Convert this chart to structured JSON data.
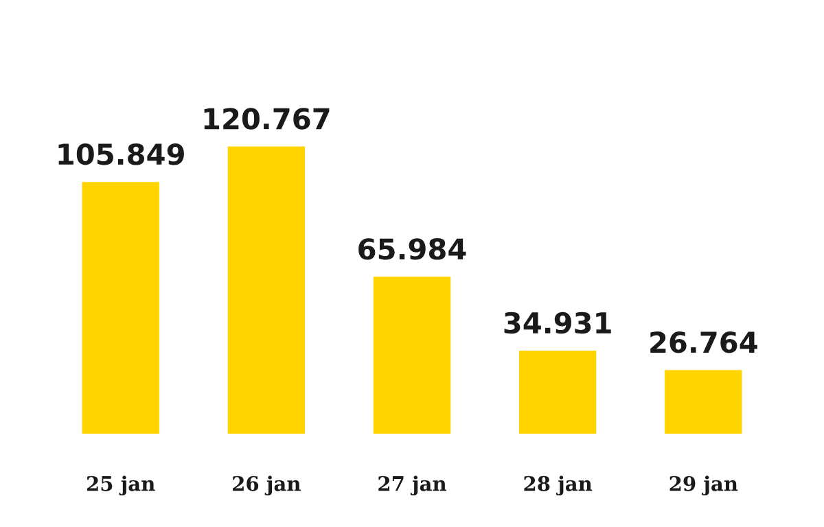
{
  "chart_data": {
    "type": "bar",
    "categories": [
      "25 jan",
      "26 jan",
      "27 jan",
      "28 jan",
      "29 jan"
    ],
    "values": [
      105849,
      120767,
      65984,
      34931,
      26764
    ],
    "value_labels": [
      "105.849",
      "120.767",
      "65.984",
      "34.931",
      "26.764"
    ],
    "color": "#ffd400",
    "grid": false,
    "legend": false
  }
}
